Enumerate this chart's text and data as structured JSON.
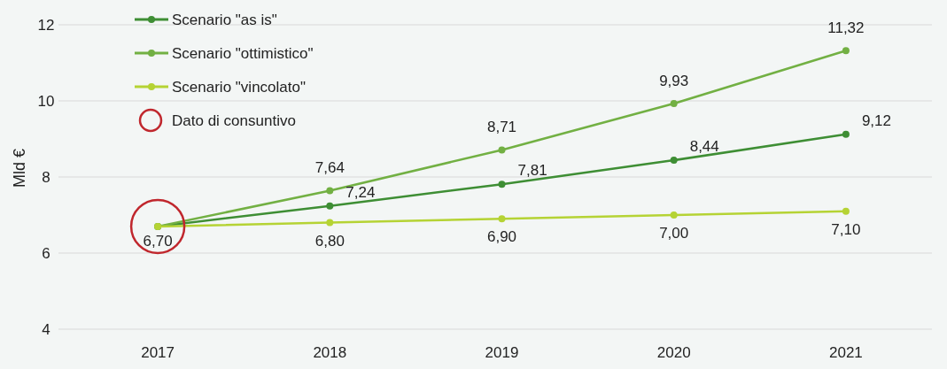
{
  "chart_data": {
    "type": "line",
    "ylabel": "Mld €",
    "categories": [
      "2017",
      "2018",
      "2019",
      "2020",
      "2021"
    ],
    "ylim": [
      4,
      12
    ],
    "yticks": [
      4,
      6,
      8,
      10,
      12
    ],
    "grid": "y",
    "legend": "top left",
    "marker": "circle",
    "line_style": "solid",
    "series": [
      {
        "name": "Scenario \"as is\"",
        "color": "#3e8e34",
        "values": [
          6.7,
          7.24,
          7.81,
          8.44,
          9.12
        ],
        "value_labels": [
          null,
          "7,24",
          "7,81",
          "8,44",
          "9,12"
        ]
      },
      {
        "name": "Scenario \"ottimistico\"",
        "color": "#72b043",
        "values": [
          6.7,
          7.64,
          8.71,
          9.93,
          11.32
        ],
        "value_labels": [
          null,
          "7,64",
          "8,71",
          "9,93",
          "11,32"
        ]
      },
      {
        "name": "Scenario \"vincolato\"",
        "color": "#b5d334",
        "values": [
          6.7,
          6.8,
          6.9,
          7.0,
          7.1
        ],
        "value_labels": [
          null,
          "6,80",
          "6,90",
          "7,00",
          "7,10"
        ]
      },
      {
        "name": "Dato di consuntivo",
        "type": "scatter",
        "color": "#c0272d",
        "values": [
          6.7,
          null,
          null,
          null,
          null
        ],
        "value_labels": [
          "6,70",
          null,
          null,
          null,
          null
        ]
      }
    ]
  }
}
